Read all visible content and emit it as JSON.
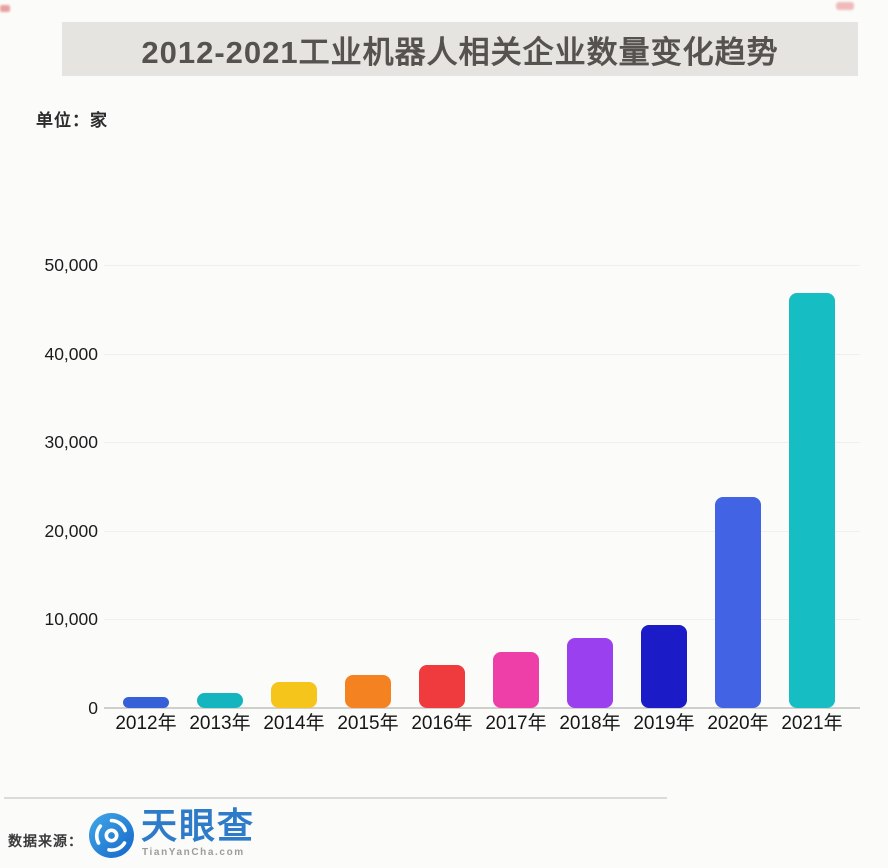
{
  "title": "2012-2021工业机器人相关企业数量变化趋势",
  "unit_label": "单位：家",
  "footer": {
    "source_label": "数据来源：",
    "brand_name": "天眼查",
    "brand_domain": "TianYanCha.com"
  },
  "colors": {
    "banner_bg": "#e6e4e1",
    "banner_text": "#555250",
    "brand_blue": "#2e7cc9",
    "axis_line": "#cfcfcc",
    "gridline": "#f0efed"
  },
  "chart_data": {
    "type": "bar",
    "title": "2012-2021工业机器人相关企业数量变化趋势",
    "unit": "家",
    "categories": [
      "2012年",
      "2013年",
      "2014年",
      "2015年",
      "2016年",
      "2017年",
      "2018年",
      "2019年",
      "2020年",
      "2021年"
    ],
    "values": [
      1200,
      1700,
      2900,
      3700,
      4800,
      6300,
      7900,
      9400,
      23800,
      46800
    ],
    "bar_colors": [
      "#3560d8",
      "#14b5bf",
      "#f6c51c",
      "#f58220",
      "#ef3a3e",
      "#ee3fa8",
      "#9b40ee",
      "#1b1bc8",
      "#4263e3",
      "#16bdc2"
    ],
    "xlabel": "",
    "ylabel": "单位：家",
    "ylim": [
      0,
      50000
    ],
    "y_ticks": [
      0,
      10000,
      20000,
      30000,
      40000,
      50000
    ],
    "y_tick_labels": [
      "0",
      "10,000",
      "20,000",
      "30,000",
      "40,000",
      "50,000"
    ],
    "grid": true,
    "legend": "none"
  }
}
